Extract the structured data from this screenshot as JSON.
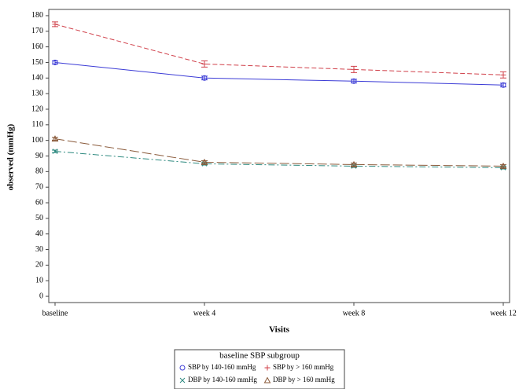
{
  "chart_data": {
    "type": "line",
    "x_label": "Visits",
    "y_label": "observed (mmHg)",
    "categories": [
      "baseline",
      "week 4",
      "week 8",
      "week 12"
    ],
    "ylim": [
      -4,
      184
    ],
    "yticks": [
      0,
      10,
      20,
      30,
      40,
      50,
      60,
      70,
      80,
      90,
      100,
      110,
      120,
      130,
      140,
      150,
      160,
      170,
      180
    ],
    "legend_title": "baseline SBP subgroup",
    "series": [
      {
        "name": "SBP by 140-160 mmHg",
        "color": "#3b3bd6",
        "marker": "circle",
        "dash": "solid",
        "values": [
          150,
          140,
          138,
          135.5
        ],
        "errors": [
          1,
          1.2,
          1.2,
          1.2
        ]
      },
      {
        "name": "SBP by > 160 mmHg",
        "color": "#d0404a",
        "marker": "plus",
        "dash": "dashed",
        "values": [
          174.5,
          149,
          145.5,
          142
        ],
        "errors": [
          1.5,
          2,
          2,
          2
        ]
      },
      {
        "name": "DBP by 140-160 mmHg",
        "color": "#2e8a80",
        "marker": "x",
        "dash": "dashdot",
        "values": [
          93,
          85,
          83.5,
          82.5
        ],
        "errors": [
          0.8,
          0.8,
          0.8,
          0.8
        ]
      },
      {
        "name": "DBP by > 160 mmHg",
        "color": "#8a5a3a",
        "marker": "triangle",
        "dash": "longdash",
        "values": [
          101,
          86,
          84.5,
          83.5
        ],
        "errors": [
          1,
          1,
          1,
          1
        ]
      }
    ]
  }
}
